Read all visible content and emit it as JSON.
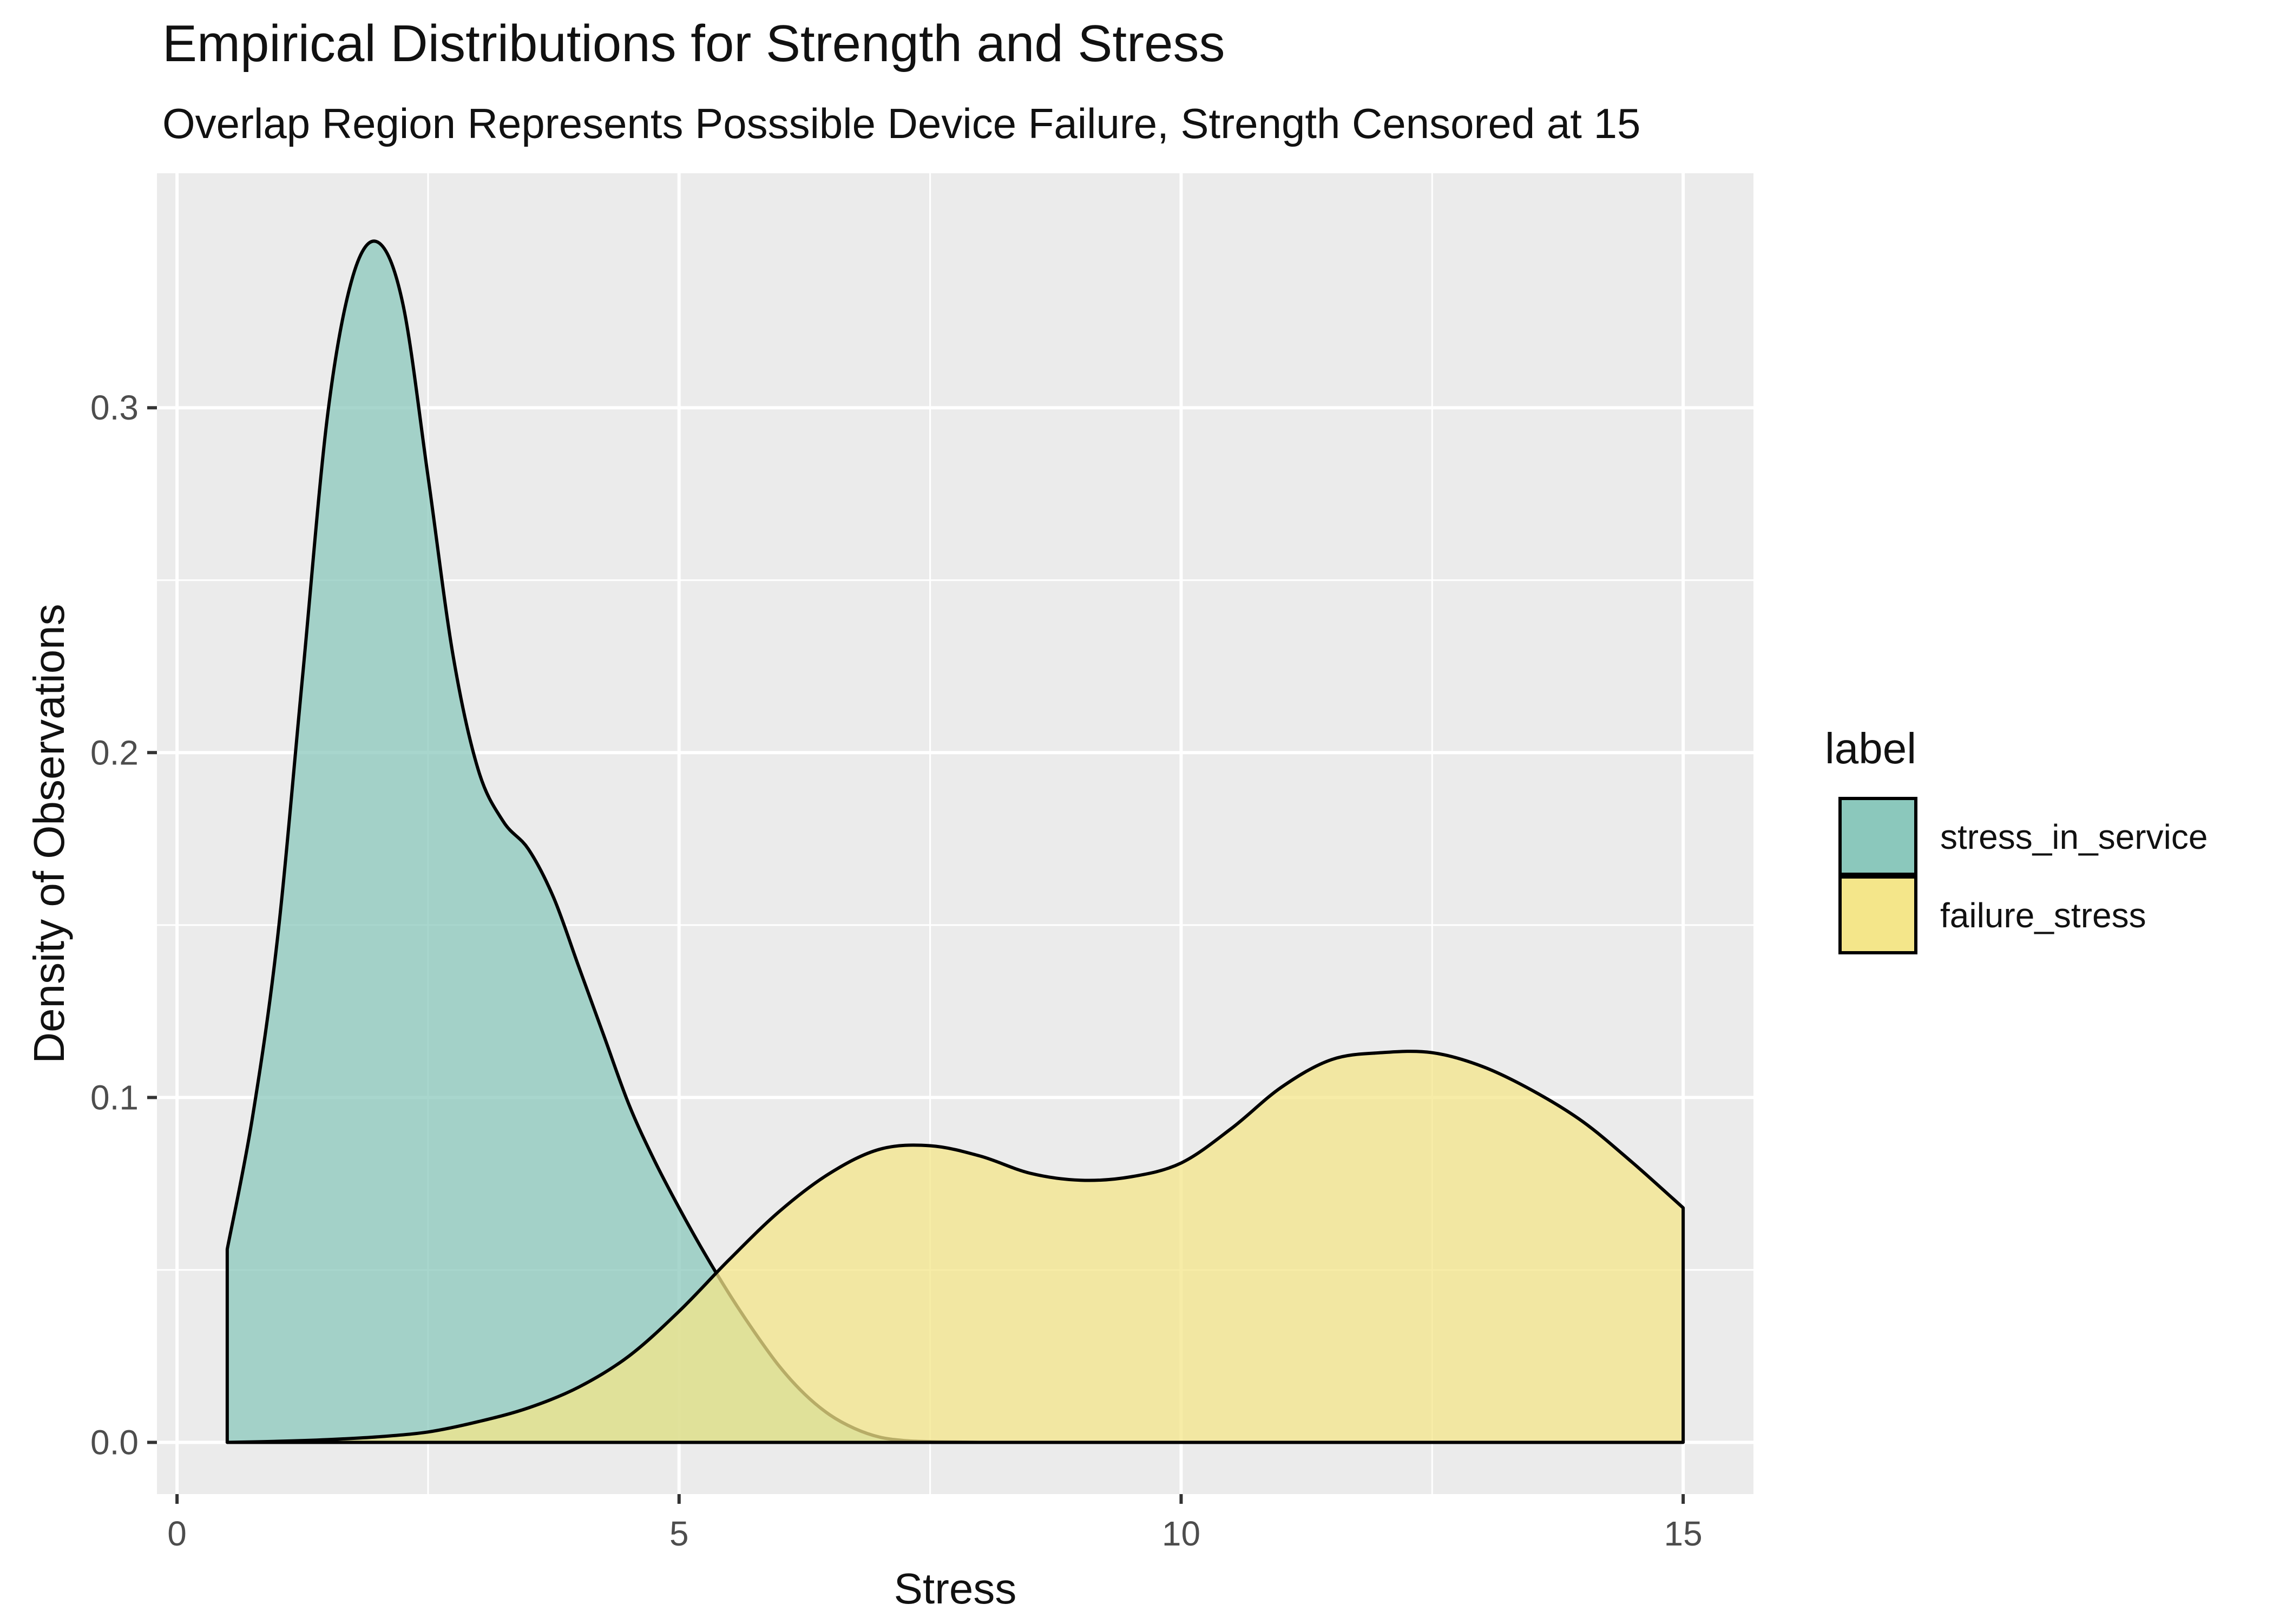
{
  "chart_data": {
    "type": "area",
    "title": "Empirical Distributions for Strength and Stress",
    "subtitle": "Overlap Region Represents Posssible Device Failure, Strength Censored at 15",
    "xlabel": "Stress",
    "ylabel": "Density of Observations",
    "xlim": [
      -0.2,
      15.7
    ],
    "ylim": [
      -0.015,
      0.368
    ],
    "x_ticks": [
      0,
      5,
      10,
      15
    ],
    "x_tick_labels": [
      "0",
      "5",
      "10",
      "15"
    ],
    "y_ticks": [
      0.0,
      0.1,
      0.2,
      0.3
    ],
    "y_tick_labels": [
      "0.0",
      "0.1",
      "0.2",
      "0.3"
    ],
    "grid": true,
    "legend": {
      "title": "label",
      "position": "right",
      "entries": [
        "stress_in_service",
        "failure_stress"
      ]
    },
    "series": [
      {
        "name": "stress_in_service",
        "color": "#8bc8bc",
        "x": [
          0.5,
          0.75,
          1.0,
          1.25,
          1.5,
          1.75,
          2.0,
          2.25,
          2.5,
          2.75,
          3.0,
          3.25,
          3.5,
          3.75,
          4.0,
          4.25,
          4.5,
          4.75,
          5.0,
          5.25,
          5.5,
          5.75,
          6.0,
          6.25,
          6.5,
          6.75,
          7.0,
          7.25,
          7.5,
          7.75,
          8.0
        ],
        "y": [
          0.056,
          0.094,
          0.146,
          0.222,
          0.298,
          0.338,
          0.348,
          0.33,
          0.28,
          0.228,
          0.195,
          0.18,
          0.172,
          0.158,
          0.138,
          0.118,
          0.098,
          0.082,
          0.068,
          0.055,
          0.043,
          0.032,
          0.022,
          0.014,
          0.008,
          0.004,
          0.0015,
          0.0005,
          0.0002,
          0.0001,
          0.0
        ]
      },
      {
        "name": "failure_stress",
        "color": "#f4e68a",
        "x": [
          0.5,
          1.0,
          1.5,
          2.0,
          2.5,
          3.0,
          3.5,
          4.0,
          4.5,
          5.0,
          5.5,
          6.0,
          6.5,
          7.0,
          7.5,
          8.0,
          8.5,
          9.0,
          9.5,
          10.0,
          10.5,
          11.0,
          11.5,
          12.0,
          12.5,
          13.0,
          13.5,
          14.0,
          14.5,
          15.0
        ],
        "y": [
          0.0,
          0.0003,
          0.0008,
          0.0016,
          0.003,
          0.006,
          0.01,
          0.016,
          0.025,
          0.038,
          0.053,
          0.067,
          0.078,
          0.085,
          0.086,
          0.083,
          0.078,
          0.076,
          0.077,
          0.081,
          0.091,
          0.103,
          0.111,
          0.113,
          0.113,
          0.109,
          0.102,
          0.093,
          0.081,
          0.068
        ]
      }
    ]
  }
}
